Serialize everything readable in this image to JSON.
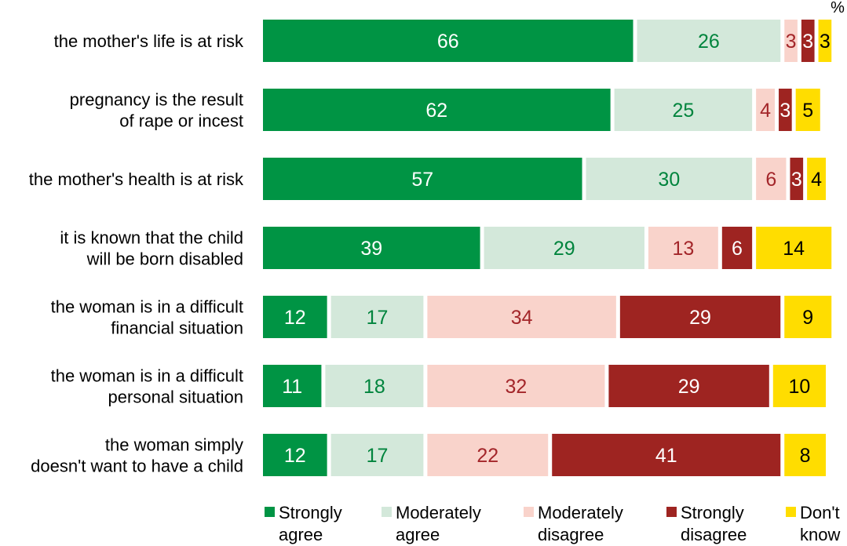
{
  "chart_data": {
    "type": "bar",
    "orientation": "horizontal",
    "stacked": true,
    "unit": "%",
    "categories": [
      [
        "the mother's life is at risk"
      ],
      [
        "pregnancy is the result",
        "of rape or incest"
      ],
      [
        "the mother's health is at risk"
      ],
      [
        "it is known that the child",
        "will be born disabled"
      ],
      [
        "the woman is in a difficult",
        "financial situation"
      ],
      [
        "the woman is in a difficult",
        "personal situation"
      ],
      [
        "the woman simply",
        "doesn't want to have a child"
      ]
    ],
    "series": [
      {
        "name": [
          "Strongly",
          "agree"
        ],
        "color": "#009444",
        "label_color": "#ffffff",
        "values": [
          66,
          62,
          57,
          39,
          12,
          11,
          12
        ]
      },
      {
        "name": [
          "Moderately",
          "agree"
        ],
        "color": "#d3e8da",
        "label_color": "#00843d",
        "values": [
          26,
          25,
          30,
          29,
          17,
          18,
          17
        ]
      },
      {
        "name": [
          "Moderately",
          "disagree"
        ],
        "color": "#f9d3cb",
        "label_color": "#a3262a",
        "values": [
          3,
          4,
          6,
          13,
          34,
          32,
          22
        ]
      },
      {
        "name": [
          "Strongly",
          "disagree"
        ],
        "color": "#9e2421",
        "label_color": "#ffffff",
        "values": [
          3,
          3,
          3,
          6,
          29,
          29,
          41
        ]
      },
      {
        "name": [
          "Don't",
          "know"
        ],
        "color": "#ffdd00",
        "label_color": "#000000",
        "values": [
          3,
          5,
          4,
          14,
          9,
          10,
          8
        ]
      }
    ],
    "xlim": [
      0,
      101
    ],
    "legend_position": "bottom"
  }
}
